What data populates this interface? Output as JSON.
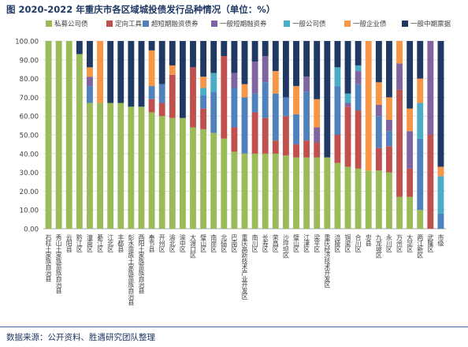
{
  "title": "图 2020-2022 年重庆市各区域城投债发行品种情况（单位：%）",
  "source": "数据来源：公开资料、胜遇研究团队整理",
  "chart_data": {
    "type": "bar",
    "stacked": true,
    "ylim": [
      0,
      100
    ],
    "yticks": [
      "0.00",
      "10.00",
      "20.00",
      "30.00",
      "40.00",
      "50.00",
      "60.00",
      "70.00",
      "80.00",
      "90.00",
      "100.00"
    ],
    "legend_position": "top",
    "categories": [
      "石柱土家族自治县",
      "秀山土家族苗族自治县",
      "云阳县",
      "黔江区",
      "潼南区",
      "綦江区",
      "江北区",
      "丰都县",
      "彭水苗族土家族苗族自治县",
      "酉阳土家族苗族自治县",
      "奉节县",
      "开州区",
      "渝北区",
      "渝中区",
      "大渡口区",
      "璧山区",
      "南岸区",
      "北碚区",
      "巴南区",
      "重庆高新技术产业开发区",
      "南川区",
      "长寿区",
      "荣昌区",
      "沙坪坝区",
      "璧山区",
      "江津区",
      "梁平区",
      "重庆经济技术开发区",
      "涪陵区",
      "铜梁区",
      "合川区",
      "忠县",
      "九龙坡区",
      "永川区",
      "万州区",
      "大足区",
      "两江新区",
      "武隆区",
      "市级"
    ],
    "series": [
      {
        "name": "私募公司债",
        "color": "#9bbb59",
        "values": [
          100,
          100,
          100,
          93,
          67,
          67,
          67,
          67,
          65,
          65,
          62,
          60,
          59,
          59,
          54,
          53,
          51,
          48,
          41,
          40,
          40,
          40,
          40,
          39,
          38,
          38,
          38,
          38,
          35,
          33,
          32,
          31,
          31,
          30,
          17,
          17,
          10,
          0,
          0
        ]
      },
      {
        "name": "定向工具",
        "color": "#c0504d",
        "values": [
          0,
          0,
          0,
          0,
          0,
          0,
          0,
          0,
          0,
          0,
          7,
          7,
          23,
          0,
          32,
          11,
          0,
          44,
          13,
          0,
          22,
          19,
          7,
          21,
          7,
          9,
          8,
          0,
          15,
          32,
          31,
          0,
          12,
          14,
          57,
          15,
          0,
          50,
          0
        ]
      },
      {
        "name": "超短期融资债券",
        "color": "#4f81bd",
        "values": [
          0,
          0,
          0,
          0,
          9,
          0,
          0,
          0,
          0,
          0,
          7,
          10,
          0,
          0,
          0,
          7,
          22,
          0,
          21,
          30,
          10,
          19,
          25,
          10,
          16,
          26,
          0,
          0,
          26,
          0,
          14,
          0,
          17,
          8,
          0,
          0,
          38,
          0,
          8
        ]
      },
      {
        "name": "一般短期融资券",
        "color": "#8064a2",
        "values": [
          0,
          0,
          0,
          0,
          5,
          0,
          0,
          0,
          0,
          0,
          0,
          0,
          0,
          0,
          0,
          0,
          0,
          0,
          8,
          0,
          17,
          14,
          0,
          0,
          0,
          8,
          8,
          0,
          0,
          2,
          7,
          0,
          6,
          6,
          14,
          20,
          0,
          50,
          0
        ]
      },
      {
        "name": "一般公司债",
        "color": "#4bacc6",
        "values": [
          0,
          0,
          0,
          0,
          0,
          0,
          0,
          0,
          0,
          0,
          0,
          0,
          0,
          0,
          0,
          4,
          10,
          0,
          0,
          0,
          0,
          0,
          0,
          0,
          0,
          0,
          0,
          0,
          10,
          5,
          3,
          0,
          0,
          0,
          0,
          0,
          19,
          0,
          20
        ]
      },
      {
        "name": "一般企业债",
        "color": "#f79646",
        "values": [
          0,
          0,
          0,
          0,
          5,
          33,
          0,
          0,
          0,
          0,
          19,
          0,
          5,
          0,
          0,
          6,
          0,
          0,
          0,
          7,
          0,
          0,
          12,
          0,
          15,
          0,
          15,
          0,
          0,
          0,
          0,
          69,
          12,
          12,
          12,
          12,
          13,
          0,
          5
        ]
      },
      {
        "name": "一般中期票据",
        "color": "#1f3864",
        "values": [
          0,
          0,
          0,
          7,
          14,
          0,
          33,
          33,
          35,
          35,
          5,
          23,
          13,
          41,
          14,
          19,
          17,
          8,
          17,
          23,
          11,
          8,
          16,
          30,
          24,
          19,
          31,
          62,
          14,
          28,
          13,
          0,
          22,
          30,
          0,
          36,
          20,
          0,
          67
        ]
      }
    ]
  }
}
